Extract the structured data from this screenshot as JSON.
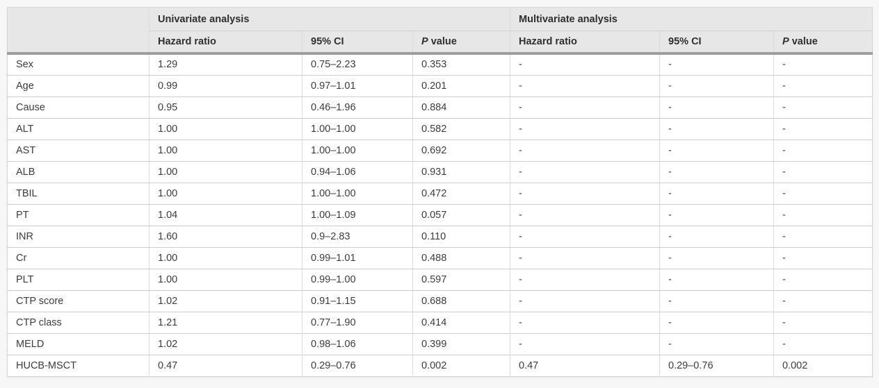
{
  "table": {
    "title_visible": false,
    "corner_label": "",
    "groups": [
      {
        "label": "Univariate analysis"
      },
      {
        "label": "Multivariate analysis"
      }
    ],
    "subheaders": [
      "Hazard ratio",
      "95% CI",
      "P value",
      "Hazard ratio",
      "95% CI",
      "P value"
    ],
    "rows": [
      {
        "variable": "Sex",
        "cells": [
          "1.29",
          "0.75–2.23",
          "0.353",
          "-",
          "-",
          "-"
        ]
      },
      {
        "variable": "Age",
        "cells": [
          "0.99",
          "0.97–1.01",
          "0.201",
          "-",
          "-",
          "-"
        ]
      },
      {
        "variable": "Cause",
        "cells": [
          "0.95",
          "0.46–1.96",
          "0.884",
          "-",
          "-",
          "-"
        ]
      },
      {
        "variable": "ALT",
        "cells": [
          "1.00",
          "1.00–1.00",
          "0.582",
          "-",
          "-",
          "-"
        ]
      },
      {
        "variable": "AST",
        "cells": [
          "1.00",
          "1.00–1.00",
          "0.692",
          "-",
          "-",
          "-"
        ]
      },
      {
        "variable": "ALB",
        "cells": [
          "1.00",
          "0.94–1.06",
          "0.931",
          "-",
          "-",
          "-"
        ]
      },
      {
        "variable": "TBIL",
        "cells": [
          "1.00",
          "1.00–1.00",
          "0.472",
          "-",
          "-",
          "-"
        ]
      },
      {
        "variable": "PT",
        "cells": [
          "1.04",
          "1.00–1.09",
          "0.057",
          "-",
          "-",
          "-"
        ]
      },
      {
        "variable": "INR",
        "cells": [
          "1.60",
          "0.9–2.83",
          "0.110",
          "-",
          "-",
          "-"
        ]
      },
      {
        "variable": "Cr",
        "cells": [
          "1.00",
          "0.99–1.01",
          "0.488",
          "-",
          "-",
          "-"
        ]
      },
      {
        "variable": "PLT",
        "cells": [
          "1.00",
          "0.99–1.00",
          "0.597",
          "-",
          "-",
          "-"
        ]
      },
      {
        "variable": "CTP score",
        "cells": [
          "1.02",
          "0.91–1.15",
          "0.688",
          "-",
          "-",
          "-"
        ]
      },
      {
        "variable": "CTP class",
        "cells": [
          "1.21",
          "0.77–1.90",
          "0.414",
          "-",
          "-",
          "-"
        ]
      },
      {
        "variable": "MELD",
        "cells": [
          "1.02",
          "0.98–1.06",
          "0.399",
          "-",
          "-",
          "-"
        ]
      },
      {
        "variable": "HUCB-MSCT",
        "cells": [
          "0.47",
          "0.29–0.76",
          "0.002",
          "0.47",
          "0.29–0.76",
          "0.002"
        ]
      }
    ]
  },
  "colors": {
    "page_background": "#f7f7f7",
    "header_background": "#e7e7e7",
    "header_divider_thick": "#9e9e9e",
    "row_divider": "#cdcdcd",
    "column_divider": "#dcdcdc",
    "text": "#3c3c3c"
  }
}
